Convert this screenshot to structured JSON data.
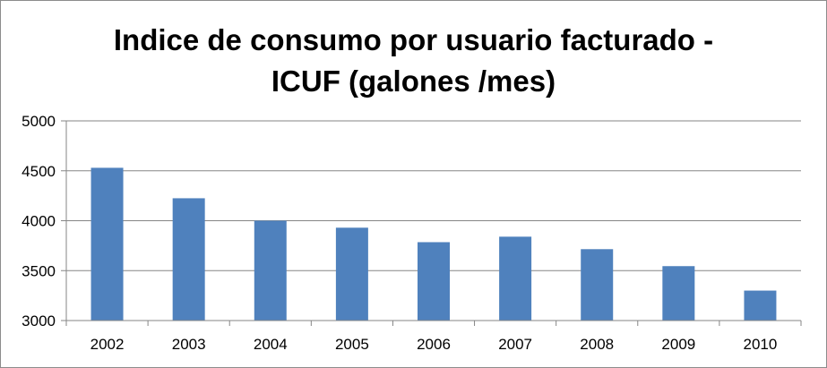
{
  "chart_data": {
    "type": "bar",
    "title_line1": "Indice de consumo por usuario facturado -",
    "title_line2": "ICUF (galones /mes)",
    "categories": [
      "2002",
      "2003",
      "2004",
      "2005",
      "2006",
      "2007",
      "2008",
      "2009",
      "2010"
    ],
    "values": [
      4530,
      4225,
      4000,
      3930,
      3785,
      3840,
      3715,
      3545,
      3300
    ],
    "ylim": [
      3000,
      5000
    ],
    "yticks": [
      "3000",
      "3500",
      "4000",
      "4500",
      "5000"
    ],
    "grid": true,
    "legend": "none",
    "bar_color": "#4f81bd"
  }
}
